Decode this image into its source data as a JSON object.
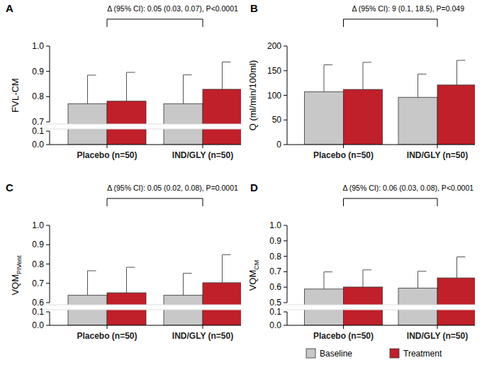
{
  "chart_data": [
    {
      "type": "bar",
      "panel": "A",
      "annotation": "Δ (95% CI): 0.05 (0.03, 0.07), P<0.0001",
      "y_label": "FVL-CM",
      "categories": [
        "Placebo (n=50)",
        "IND/GLY (n=50)"
      ],
      "series": [
        {
          "name": "Baseline",
          "color": "#c8c8c8",
          "values": [
            0.772,
            0.772
          ],
          "errors": [
            0.113,
            0.114
          ]
        },
        {
          "name": "Treatment",
          "color": "#c0202a",
          "values": [
            0.782,
            0.829
          ],
          "errors": [
            0.114,
            0.108
          ]
        }
      ],
      "ylim": [
        0,
        1
      ],
      "yticks": [
        {
          "value": 0,
          "label": "0.0"
        },
        0.1,
        0.7,
        0.8,
        0.9,
        {
          "value": 1,
          "label": "1.0"
        }
      ],
      "legend": "bottom"
    },
    {
      "type": "bar",
      "panel": "B",
      "annotation": "Δ (95% CI): 9 (0.1, 18.5), P=0.049",
      "y_label": "Q (ml/min/100ml)",
      "categories": [
        "Placebo (n=50)",
        "IND/GLY (n=50)"
      ],
      "series": [
        {
          "color": "#c8c8c8",
          "values": [
            107,
            96
          ],
          "errors": [
            55,
            47
          ]
        },
        {
          "color": "#c0202a",
          "values": [
            112,
            121
          ],
          "errors": [
            55,
            50
          ]
        }
      ],
      "ylim": [
        0,
        200
      ],
      "yticks": [
        0,
        50,
        100,
        150,
        200
      ]
    },
    {
      "type": "bar",
      "panel": "C",
      "annotation": "Δ (95% CI): 0.05 (0.02, 0.08), P=0.0001",
      "y_label": "VQM",
      "y_label_subscript": "PIVent",
      "categories": [
        "Placebo (n=50)",
        "IND/GLY (n=50)"
      ],
      "series": [
        {
          "color": "#c8c8c8",
          "values": [
            0.638,
            0.638
          ],
          "errors": [
            0.127,
            0.114
          ]
        },
        {
          "color": "#c0202a",
          "values": [
            0.651,
            0.703
          ],
          "errors": [
            0.132,
            0.145
          ]
        }
      ],
      "ylim": [
        0,
        1
      ],
      "yticks": [
        {
          "value": 0,
          "label": "0.0"
        },
        0.1,
        0.6,
        0.7,
        0.8,
        0.9,
        {
          "value": 1,
          "label": "1.0"
        }
      ]
    },
    {
      "type": "bar",
      "panel": "D",
      "annotation": "Δ (95% CI): 0.06 (0.03, 0.08), P<0.0001",
      "y_label": "VQM",
      "y_label_subscript": "CM",
      "categories": [
        "Placebo (n=50)",
        "IND/GLY (n=50)"
      ],
      "series": [
        {
          "color": "#c8c8c8",
          "values": [
            0.588,
            0.594
          ],
          "errors": [
            0.111,
            0.109
          ]
        },
        {
          "color": "#c0202a",
          "values": [
            0.601,
            0.66
          ],
          "errors": [
            0.111,
            0.136
          ]
        }
      ],
      "ylim": [
        0,
        1
      ],
      "yticks": [
        {
          "value": 0,
          "label": "0.0"
        },
        0.1,
        0.5,
        0.6,
        0.7,
        0.8,
        0.9,
        {
          "value": 1,
          "label": "1.0"
        }
      ]
    }
  ]
}
